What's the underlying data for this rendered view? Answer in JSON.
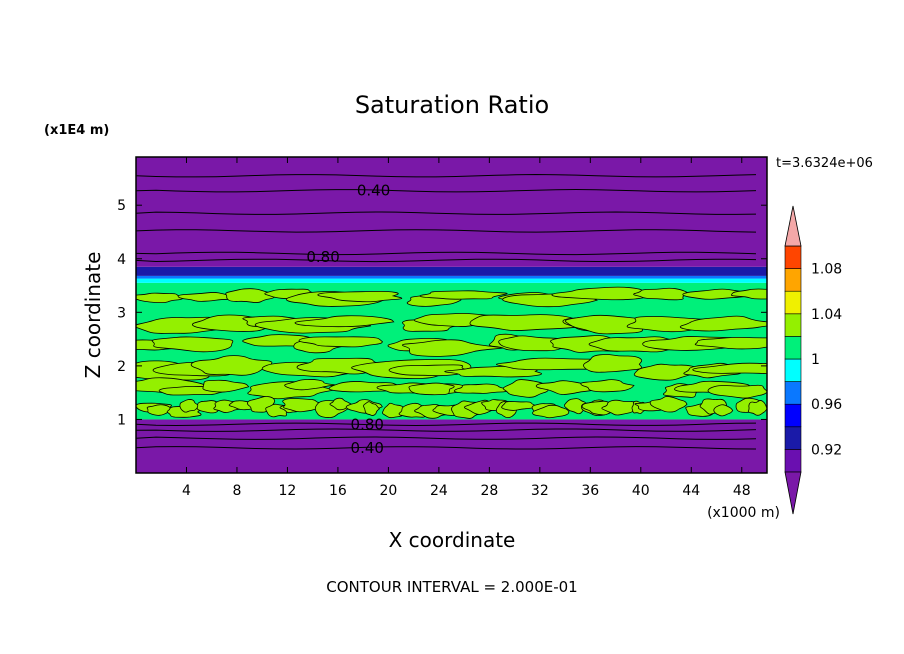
{
  "chart_data": {
    "type": "heatmap",
    "title": "Saturation Ratio",
    "xlabel": "X coordinate",
    "ylabel": "Z coordinate",
    "x_unit": "(x1000 m)",
    "y_unit": "(x1E4 m)",
    "time_label": "t=3.6324e+06",
    "footer": "CONTOUR INTERVAL = 2.000E-01",
    "xlim": [
      0,
      50
    ],
    "ylim": [
      0,
      5.9
    ],
    "x_ticks": [
      4,
      8,
      12,
      16,
      20,
      24,
      28,
      32,
      36,
      40,
      44,
      48
    ],
    "y_ticks": [
      1,
      2,
      3,
      4,
      5
    ],
    "contour_labels": [
      {
        "text": "0.40",
        "x": 17.5,
        "y": 5.27
      },
      {
        "text": "0.80",
        "x": 13.5,
        "y": 4.03
      },
      {
        "text": "0.80",
        "x": 17.0,
        "y": 0.91
      },
      {
        "text": "0.40",
        "x": 17.0,
        "y": 0.47
      }
    ],
    "colorbar": {
      "levels": [
        0.9,
        0.92,
        0.94,
        0.96,
        0.98,
        1.0,
        1.02,
        1.04,
        1.06,
        1.08,
        1.1
      ],
      "tick_labels": [
        "0.92",
        "0.96",
        "1",
        "1.04",
        "1.08"
      ],
      "colors": [
        "#6a0fb0",
        "#1a1aa8",
        "#0000ff",
        "#0a78ff",
        "#00ffff",
        "#00f07a",
        "#94f000",
        "#f0f000",
        "#ffa500",
        "#ff4500",
        "#ff1a1a"
      ],
      "under_color": "#7a18a8",
      "over_color": "#f4a8a8"
    },
    "bands": [
      {
        "z0": 0.0,
        "z1": 1.0,
        "color": "#7a18a8"
      },
      {
        "z0": 1.0,
        "z1": 3.55,
        "color": "#00f07a"
      },
      {
        "z0": 3.55,
        "z1": 3.63,
        "color": "#00ffff"
      },
      {
        "z0": 3.63,
        "z1": 3.68,
        "color": "#0a78ff"
      },
      {
        "z0": 3.68,
        "z1": 3.85,
        "color": "#1a1aa8"
      },
      {
        "z0": 3.85,
        "z1": 5.9,
        "color": "#7a18a8"
      }
    ],
    "contour_lines_z": [
      0.47,
      0.65,
      0.8,
      0.91,
      3.97,
      4.1,
      4.52,
      4.85,
      5.27,
      5.55
    ]
  }
}
